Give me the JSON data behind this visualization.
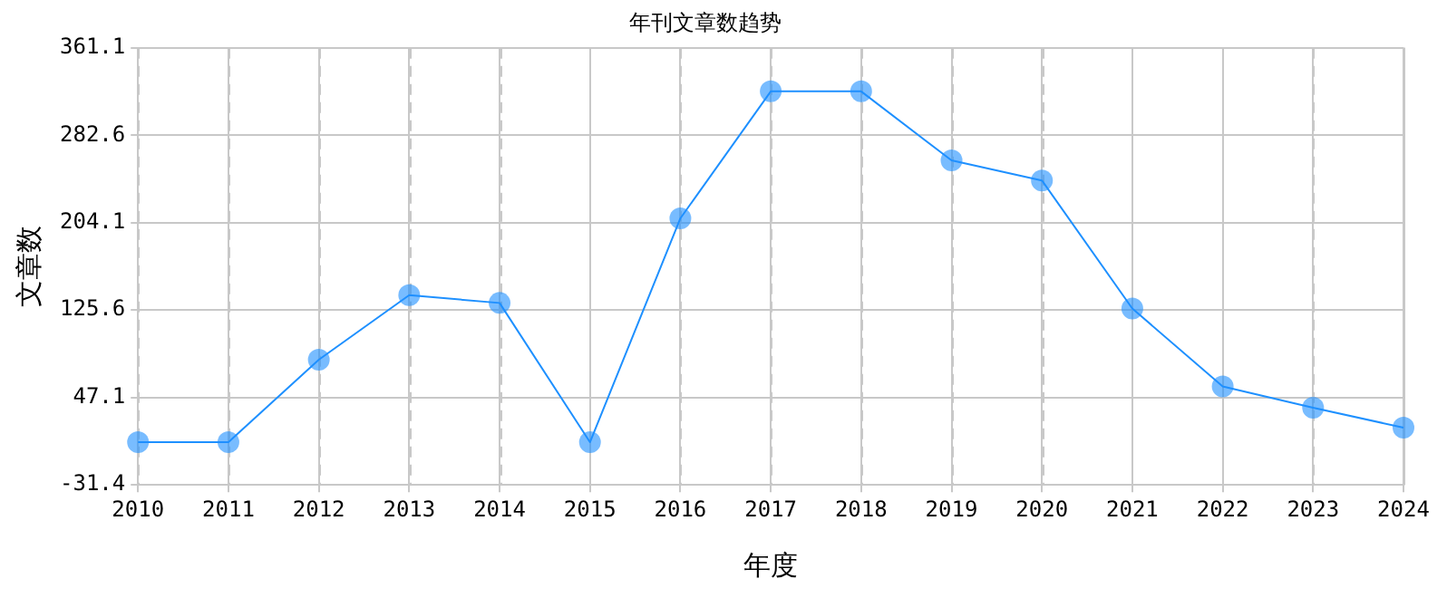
{
  "chart_data": {
    "type": "line",
    "title": "年刊文章数趋势",
    "xlabel": "年度",
    "ylabel": "文章数",
    "categories": [
      "2010",
      "2011",
      "2012",
      "2013",
      "2014",
      "2015",
      "2016",
      "2017",
      "2018",
      "2019",
      "2020",
      "2021",
      "2022",
      "2023",
      "2024"
    ],
    "series": [
      {
        "color": "#1e90ff",
        "values": [
          7,
          7,
          81,
          139,
          132,
          7,
          208,
          322,
          322,
          260,
          242,
          127,
          57,
          38,
          20
        ]
      }
    ],
    "ylim": [
      -31.4,
      361.1
    ],
    "yticks": [
      -31.4,
      47.1,
      125.6,
      204.1,
      282.6,
      361.1
    ],
    "grid": true,
    "legend": false,
    "marker": "circle",
    "line_style": "solid"
  }
}
